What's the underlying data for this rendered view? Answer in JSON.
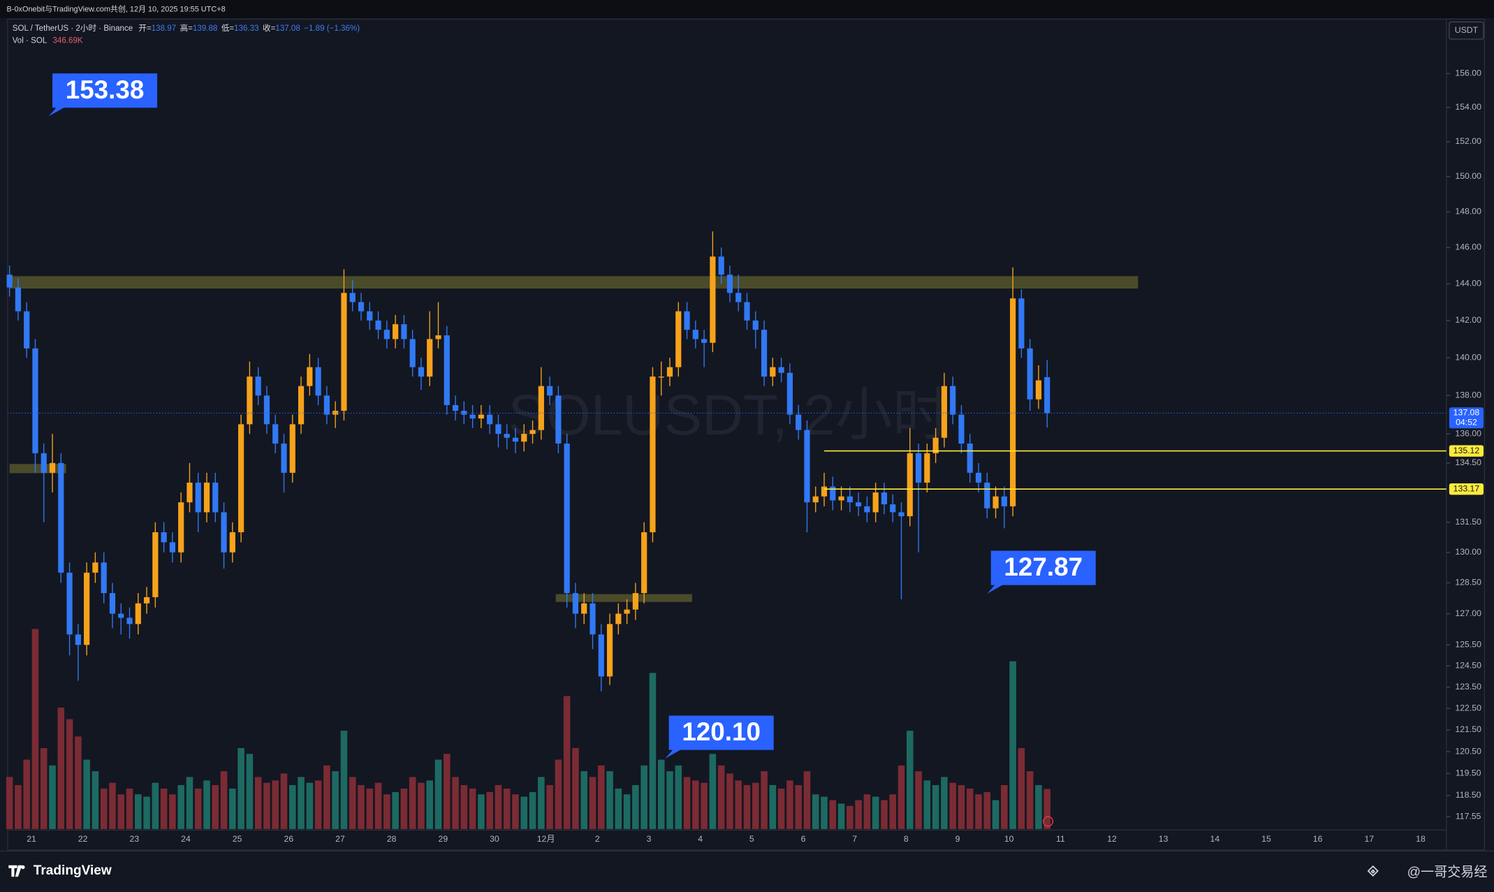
{
  "topbar": "B-0xOnebit与TradingView.com共创, 12月 10, 2025 19:55 UTC+8",
  "chart_data": {
    "type": "candlestick",
    "symbol": "SOL / TetherUS · 2小时 · Binance",
    "watermark": "SOLUSDT, 2小时",
    "currency": "USDT",
    "ohlc_labels": [
      "开=",
      "高=",
      "低=",
      "收="
    ],
    "change": "−1.89 (−1.36%)",
    "volume_title": "Vol · SOL",
    "volume_last_label": "346.69K",
    "countdown": "04:52",
    "log_scale": true,
    "ylim": [
      117,
      159.27
    ],
    "yticks": [
      {
        "value": 156,
        "label": "156.00"
      },
      {
        "value": 154,
        "label": "154.00"
      },
      {
        "value": 152,
        "label": "152.00"
      },
      {
        "value": 150,
        "label": "150.00"
      },
      {
        "value": 148,
        "label": "148.00"
      },
      {
        "value": 146,
        "label": "146.00"
      },
      {
        "value": 144,
        "label": "144.00"
      },
      {
        "value": 142,
        "label": "142.00"
      },
      {
        "value": 140,
        "label": "140.00"
      },
      {
        "value": 138,
        "label": "138.00"
      },
      {
        "value": 136,
        "label": "136.00"
      },
      {
        "value": 134.5,
        "label": "134.50"
      },
      {
        "value": 131.5,
        "label": "131.50"
      },
      {
        "value": 130,
        "label": "130.00"
      },
      {
        "value": 128.5,
        "label": "128.50"
      },
      {
        "value": 127,
        "label": "127.00"
      },
      {
        "value": 125.5,
        "label": "125.50"
      },
      {
        "value": 124.5,
        "label": "124.50"
      },
      {
        "value": 123.5,
        "label": "123.50"
      },
      {
        "value": 122.5,
        "label": "122.50"
      },
      {
        "value": 121.5,
        "label": "121.50"
      },
      {
        "value": 120.5,
        "label": "120.50"
      },
      {
        "value": 119.5,
        "label": "119.50"
      },
      {
        "value": 118.5,
        "label": "118.50"
      },
      117.55
    ],
    "x_labels": [
      "21",
      "22",
      "23",
      "24",
      "25",
      "26",
      "27",
      "28",
      "29",
      "30",
      "12月",
      "2",
      "3",
      "4",
      "5",
      "6",
      "7",
      "8",
      "9",
      "10",
      "11",
      "12",
      "13",
      "14",
      "15",
      "16",
      "17",
      "18"
    ],
    "open": [
      144.5,
      143.8,
      142.5,
      140.5,
      135.0,
      134.0,
      134.5,
      129.0,
      126.0,
      125.5,
      129.0,
      129.5,
      128.0,
      127.0,
      126.8,
      126.5,
      127.5,
      127.8,
      131.0,
      130.5,
      130.0,
      132.5,
      133.5,
      132.0,
      133.5,
      132.0,
      130.0,
      131.0,
      136.5,
      139.0,
      138.0,
      136.5,
      135.5,
      134.0,
      136.5,
      138.5,
      139.5,
      138.0,
      137.0,
      137.2,
      143.5,
      143.0,
      142.5,
      142.0,
      141.5,
      141.0,
      141.8,
      141.0,
      139.5,
      139.0,
      141.0,
      141.2,
      137.5,
      137.2,
      137.0,
      136.8,
      137.0,
      136.5,
      136.0,
      135.8,
      135.6,
      136.0,
      136.2,
      138.5,
      138.0,
      135.5,
      128.0,
      127.0,
      127.5,
      126.0,
      124.0,
      126.5,
      127.0,
      127.2,
      128.0,
      131.0,
      139.0,
      139.0,
      139.5,
      142.5,
      141.5,
      141.0,
      140.8,
      145.5,
      144.5,
      143.5,
      143.0,
      142.0,
      141.5,
      139.0,
      139.5,
      139.2,
      137.0,
      136.2,
      132.5,
      132.8,
      133.3,
      132.6,
      132.8,
      132.5,
      132.3,
      132.0,
      133.0,
      132.4,
      132.0,
      131.8,
      135.0,
      133.5,
      135.0,
      135.8,
      138.5,
      137.0,
      135.5,
      134.0,
      133.5,
      132.2,
      132.8,
      132.3,
      143.2,
      140.5,
      137.8,
      138.97
    ],
    "high": [
      145.0,
      144.3,
      143.0,
      141.0,
      135.5,
      136.0,
      135.0,
      129.5,
      126.5,
      129.5,
      130.0,
      130.0,
      128.5,
      127.5,
      127.3,
      128.0,
      128.3,
      131.5,
      131.5,
      131.0,
      133.0,
      134.5,
      134.0,
      134.0,
      134.0,
      132.5,
      131.5,
      137.0,
      139.8,
      139.5,
      138.5,
      137.0,
      136.0,
      137.0,
      139.0,
      140.2,
      140.0,
      138.5,
      137.7,
      144.8,
      144.2,
      143.5,
      143.0,
      142.5,
      142.0,
      142.3,
      142.3,
      141.5,
      140.0,
      142.5,
      143.0,
      141.7,
      138.0,
      137.7,
      137.5,
      137.5,
      137.5,
      137.0,
      136.5,
      136.3,
      136.5,
      136.7,
      139.5,
      139.0,
      138.5,
      136.0,
      128.5,
      128.0,
      128.0,
      126.5,
      127.0,
      127.5,
      127.7,
      128.5,
      131.5,
      139.5,
      139.8,
      140.0,
      143.0,
      143.0,
      142.0,
      141.5,
      146.9,
      146.0,
      145.0,
      144.5,
      143.5,
      142.5,
      142.0,
      140.0,
      140.0,
      139.7,
      137.5,
      136.7,
      133.3,
      134.0,
      133.8,
      133.3,
      133.3,
      133.0,
      132.8,
      133.5,
      133.5,
      132.9,
      132.5,
      136.3,
      135.5,
      135.5,
      136.3,
      139.2,
      139.0,
      137.5,
      136.0,
      134.5,
      134.0,
      133.3,
      133.3,
      144.9,
      143.7,
      141.0,
      139.6,
      139.88
    ],
    "low": [
      143.3,
      142.0,
      140.0,
      134.0,
      131.5,
      133.0,
      128.5,
      125.0,
      123.8,
      125.0,
      128.5,
      127.5,
      126.3,
      126.0,
      125.8,
      126.0,
      127.0,
      127.3,
      130.0,
      129.5,
      129.5,
      132.0,
      131.0,
      131.5,
      131.5,
      129.2,
      129.5,
      130.5,
      136.0,
      137.5,
      136.0,
      135.0,
      133.0,
      133.5,
      136.0,
      138.0,
      137.5,
      136.5,
      136.3,
      136.7,
      142.5,
      142.0,
      141.5,
      141.0,
      140.5,
      140.5,
      140.5,
      139.0,
      138.3,
      138.5,
      140.5,
      137.0,
      136.7,
      136.5,
      136.3,
      136.3,
      136.0,
      135.3,
      135.2,
      135.0,
      135.1,
      135.5,
      135.7,
      137.5,
      135.0,
      127.3,
      126.3,
      126.5,
      125.3,
      123.3,
      123.6,
      126.0,
      126.5,
      126.7,
      127.5,
      130.5,
      138.0,
      138.5,
      139.0,
      141.0,
      140.5,
      139.5,
      140.3,
      144.0,
      143.0,
      142.5,
      141.5,
      140.5,
      138.5,
      138.5,
      138.7,
      136.5,
      135.7,
      131.0,
      132.0,
      132.3,
      132.1,
      132.1,
      132.0,
      131.8,
      131.5,
      131.5,
      131.9,
      131.5,
      127.7,
      131.3,
      130.0,
      133.0,
      134.5,
      135.3,
      136.5,
      135.0,
      133.5,
      133.0,
      131.7,
      131.7,
      131.2,
      131.8,
      140.0,
      137.2,
      137.3,
      136.33
    ],
    "close": [
      143.8,
      142.5,
      140.5,
      135.0,
      134.0,
      134.5,
      129.0,
      126.0,
      125.5,
      129.0,
      129.5,
      128.0,
      127.0,
      126.8,
      126.5,
      127.5,
      127.8,
      131.0,
      130.5,
      130.0,
      132.5,
      133.5,
      132.0,
      133.5,
      132.0,
      130.0,
      131.0,
      136.5,
      139.0,
      138.0,
      136.5,
      135.5,
      134.0,
      136.5,
      138.5,
      139.5,
      138.0,
      137.0,
      137.2,
      143.5,
      143.0,
      142.5,
      142.0,
      141.5,
      141.0,
      141.8,
      141.0,
      139.5,
      139.0,
      141.0,
      141.2,
      137.5,
      137.2,
      137.0,
      136.8,
      137.0,
      136.5,
      136.0,
      135.8,
      135.6,
      136.0,
      136.2,
      138.5,
      138.0,
      135.5,
      128.0,
      127.0,
      127.5,
      126.0,
      124.0,
      126.5,
      127.0,
      127.2,
      128.0,
      131.0,
      139.0,
      139.0,
      139.5,
      142.5,
      141.5,
      141.0,
      140.8,
      145.5,
      144.5,
      143.5,
      143.0,
      142.0,
      141.5,
      139.0,
      139.5,
      139.2,
      137.0,
      136.2,
      132.5,
      132.8,
      133.3,
      132.6,
      132.8,
      132.5,
      132.3,
      132.0,
      133.0,
      132.4,
      132.0,
      131.8,
      135.0,
      133.5,
      135.0,
      135.8,
      138.5,
      137.0,
      135.5,
      134.0,
      133.5,
      132.2,
      132.8,
      132.3,
      143.2,
      140.5,
      137.8,
      138.8,
      137.08
    ],
    "volume": [
      450,
      380,
      600,
      1730,
      700,
      550,
      1050,
      950,
      800,
      600,
      500,
      350,
      400,
      300,
      350,
      300,
      280,
      400,
      350,
      300,
      380,
      450,
      350,
      420,
      380,
      500,
      350,
      700,
      650,
      450,
      400,
      420,
      480,
      380,
      450,
      400,
      420,
      550,
      500,
      850,
      450,
      380,
      350,
      400,
      300,
      320,
      350,
      450,
      400,
      420,
      600,
      650,
      450,
      380,
      350,
      300,
      320,
      380,
      350,
      300,
      280,
      320,
      450,
      380,
      600,
      1150,
      700,
      500,
      450,
      550,
      500,
      350,
      300,
      380,
      550,
      1350,
      600,
      500,
      550,
      450,
      420,
      400,
      650,
      550,
      480,
      420,
      380,
      400,
      500,
      380,
      350,
      420,
      380,
      500,
      300,
      280,
      250,
      220,
      200,
      250,
      300,
      280,
      250,
      300,
      550,
      850,
      500,
      420,
      380,
      450,
      400,
      380,
      350,
      300,
      320,
      250,
      380,
      1450,
      700,
      500,
      380,
      346.69
    ],
    "up_color": "#f7a21b",
    "down_color": "#3179f5",
    "volume_up_color": "#1d6a62",
    "volume_down_color": "#7b2b34",
    "hlines": [
      135.12,
      133.17
    ],
    "hline_color": "#ffeb3b",
    "zones": [
      {
        "range": [
          143.74,
          144.42
        ],
        "span": [
          0,
          131.6
        ]
      },
      {
        "range": [
          133.98,
          134.45
        ],
        "span": [
          0,
          6.6
        ]
      },
      {
        "range": [
          127.57,
          127.95
        ],
        "span": [
          63.7,
          79.6
        ]
      }
    ],
    "zone_color": "#55552a",
    "callouts": [
      "153.38",
      "127.87",
      "120.10"
    ]
  },
  "footer": {
    "brand": "TradingView",
    "watermark": "@一哥交易经"
  }
}
